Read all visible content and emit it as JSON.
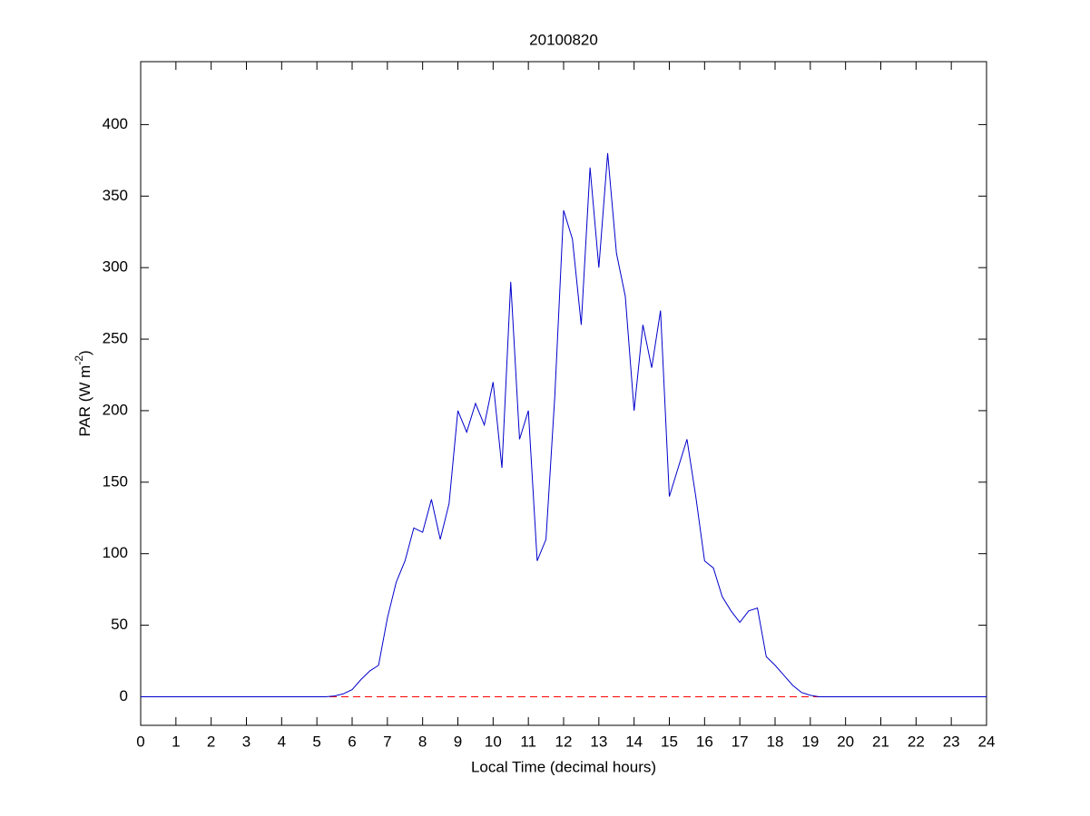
{
  "chart_data": {
    "type": "line",
    "title": "20100820",
    "x_label": "Local Time (decimal hours)",
    "y_label": {
      "text": "PAR (W m",
      "superscript": "-2",
      "suffix": ")"
    },
    "x": [
      0,
      0.25,
      0.5,
      0.75,
      1,
      1.25,
      1.5,
      1.75,
      2,
      2.25,
      2.5,
      2.75,
      3,
      3.25,
      3.5,
      3.75,
      4,
      4.25,
      4.5,
      4.75,
      5,
      5.25,
      5.5,
      5.75,
      6,
      6.25,
      6.5,
      6.75,
      7,
      7.25,
      7.5,
      7.75,
      8,
      8.25,
      8.5,
      8.75,
      9,
      9.25,
      9.5,
      9.75,
      10,
      10.25,
      10.5,
      10.75,
      11,
      11.25,
      11.5,
      11.75,
      12,
      12.25,
      12.5,
      12.75,
      13,
      13.25,
      13.5,
      13.75,
      14,
      14.25,
      14.5,
      14.75,
      15,
      15.25,
      15.5,
      15.75,
      16,
      16.25,
      16.5,
      16.75,
      17,
      17.25,
      17.5,
      17.75,
      18,
      18.25,
      18.5,
      18.75,
      19,
      19.25,
      19.5,
      19.75,
      20,
      20.25,
      20.5,
      20.75,
      21,
      21.25,
      21.5,
      21.75,
      22,
      22.25,
      22.5,
      22.75,
      23,
      23.25,
      23.5,
      23.75,
      24
    ],
    "series": [
      {
        "name": "PAR",
        "color": "#0000cc",
        "values": [
          0,
          0,
          0,
          0,
          0,
          0,
          0,
          0,
          0,
          0,
          0,
          0,
          0,
          0,
          0,
          0,
          0,
          0,
          0,
          0,
          0,
          0,
          0.5,
          2,
          5,
          12,
          18,
          22,
          55,
          80,
          95,
          118,
          115,
          138,
          110,
          135,
          200,
          185,
          205,
          190,
          220,
          160,
          290,
          180,
          200,
          95,
          110,
          210,
          340,
          320,
          260,
          370,
          300,
          380,
          310,
          280,
          200,
          260,
          230,
          270,
          140,
          160,
          180,
          140,
          95,
          90,
          70,
          60,
          52,
          60,
          62,
          28,
          22,
          15,
          8,
          3,
          1,
          0,
          0,
          0,
          0,
          0,
          0,
          0,
          0,
          0,
          0,
          0,
          0,
          0,
          0,
          0,
          0,
          0,
          0,
          0,
          0
        ]
      }
    ],
    "reference_line": {
      "value": 0,
      "color": "#ff0000",
      "style": "dashed"
    },
    "xlim": [
      0,
      24
    ],
    "xticks": [
      0,
      1,
      2,
      3,
      4,
      5,
      6,
      7,
      8,
      9,
      10,
      11,
      12,
      13,
      14,
      15,
      16,
      17,
      18,
      19,
      20,
      21,
      22,
      23,
      24
    ],
    "ylim": [
      -20,
      444
    ],
    "yticks": [
      0,
      50,
      100,
      150,
      200,
      250,
      300,
      350,
      400
    ],
    "grid": false
  }
}
